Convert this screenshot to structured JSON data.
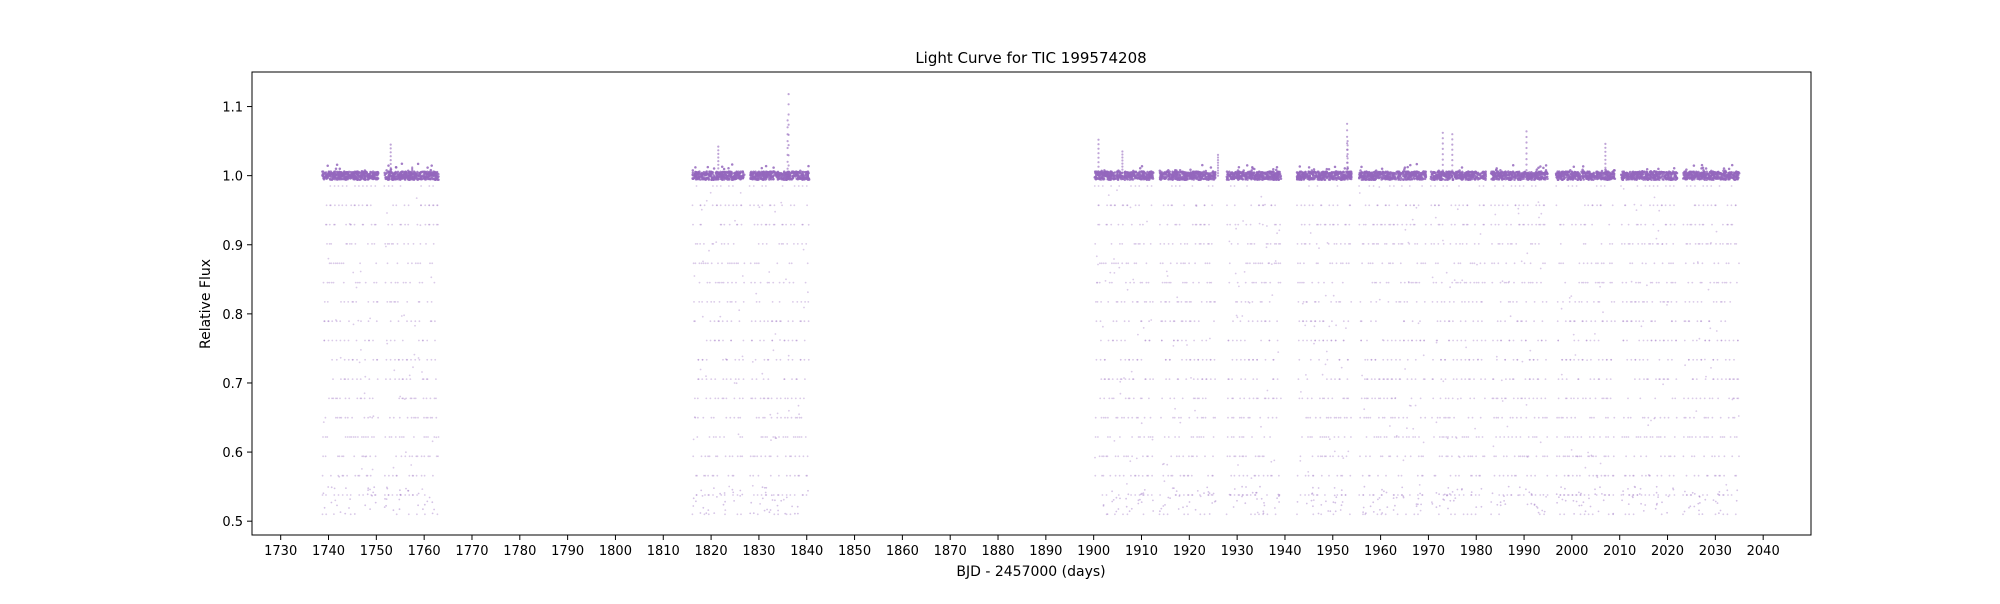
{
  "chart_data": {
    "type": "scatter",
    "title": "Light Curve for TIC 199574208",
    "xlabel": "BJD - 2457000 (days)",
    "ylabel": "Relative Flux",
    "xlim": [
      1724,
      2050
    ],
    "ylim": [
      0.48,
      1.15
    ],
    "xticks": [
      1730,
      1740,
      1750,
      1760,
      1770,
      1780,
      1790,
      1800,
      1810,
      1820,
      1830,
      1840,
      1850,
      1860,
      1870,
      1880,
      1890,
      1900,
      1910,
      1920,
      1930,
      1940,
      1950,
      1960,
      1970,
      1980,
      1990,
      2000,
      2010,
      2020,
      2030,
      2040
    ],
    "yticks": [
      0.5,
      0.6,
      0.7,
      0.8,
      0.9,
      1.0,
      1.1
    ],
    "grid": false,
    "colors": {
      "points": "#9467bd",
      "axes": "#000000",
      "background": "#ffffff"
    },
    "series": [
      {
        "baseline_flux": 1.0,
        "min_flux": 0.51,
        "segments": [
          [
            1738.7,
            1750.4
          ],
          [
            1751.7,
            1763.0
          ],
          [
            1816.1,
            1827.0
          ],
          [
            1828.1,
            1840.5
          ],
          [
            1900.2,
            1912.5
          ],
          [
            1913.8,
            1925.5
          ],
          [
            1927.8,
            1939.2
          ],
          [
            1942.5,
            1953.9
          ],
          [
            1955.5,
            1956.8
          ],
          [
            1956.8,
            1969.5
          ],
          [
            1970.5,
            1982.0
          ],
          [
            1983.1,
            1995.0
          ],
          [
            1996.7,
            2009.0
          ],
          [
            2010.3,
            2022.0
          ],
          [
            2023.2,
            2035.0
          ]
        ],
        "flares": [
          {
            "x": 1753.0,
            "y": 1.045
          },
          {
            "x": 1757.5,
            "y": 1.012
          },
          {
            "x": 1821.5,
            "y": 1.042
          },
          {
            "x": 1836.2,
            "y": 1.118
          },
          {
            "x": 1836.0,
            "y": 1.08
          },
          {
            "x": 1901.0,
            "y": 1.052
          },
          {
            "x": 1906.0,
            "y": 1.035
          },
          {
            "x": 1926.0,
            "y": 1.03
          },
          {
            "x": 1953.0,
            "y": 1.075
          },
          {
            "x": 1953.1,
            "y": 1.05
          },
          {
            "x": 1973.0,
            "y": 1.062
          },
          {
            "x": 1975.0,
            "y": 1.06
          },
          {
            "x": 1990.5,
            "y": 1.064
          },
          {
            "x": 2007.0,
            "y": 1.046
          }
        ]
      }
    ]
  }
}
